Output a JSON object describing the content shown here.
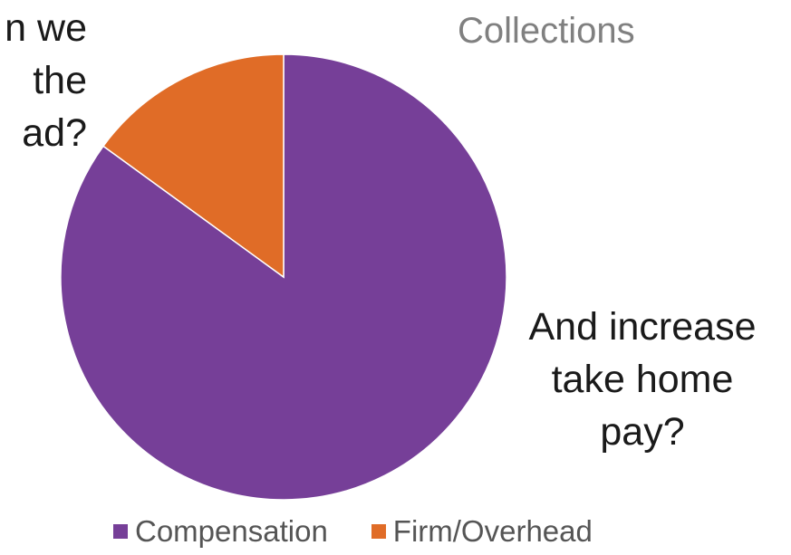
{
  "chart_data": {
    "type": "pie",
    "title": "Collections",
    "slices": [
      {
        "label": "Compensation",
        "value": 85,
        "color": "#763F98"
      },
      {
        "label": "Firm/Overhead",
        "value": 15,
        "color": "#E06C27"
      }
    ],
    "start_angle_deg": 0,
    "direction": "clockwise",
    "legend_placement": "bottom",
    "annotations": {
      "left_lines": [
        "n we",
        "the",
        "ad?"
      ],
      "right_lines": [
        "And increase",
        "take home",
        "pay?"
      ]
    }
  }
}
